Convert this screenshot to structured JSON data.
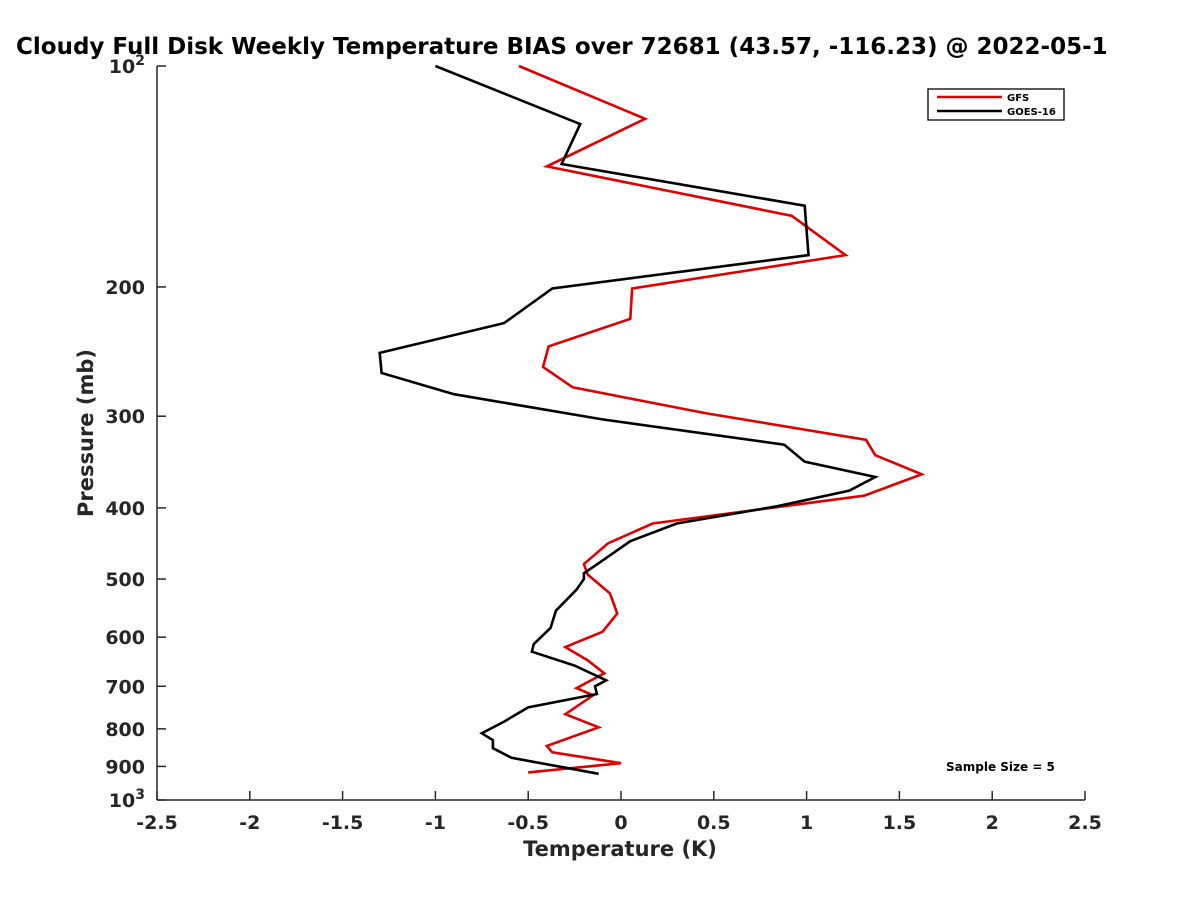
{
  "chart_data": {
    "type": "line",
    "title": "Cloudy Full Disk Weekly Temperature BIAS over 72681 (43.57, -116.23) @ 2022-05-1",
    "xlabel": "Temperature (K)",
    "ylabel": "Pressure (mb)",
    "xlim": [
      -2.5,
      2.5
    ],
    "ylim": [
      100,
      1000
    ],
    "y_scale": "log",
    "y_reversed": true,
    "x_ticks": [
      "-2.5",
      "-2",
      "-1.5",
      "-1",
      "-0.5",
      "0",
      "0.5",
      "1",
      "1.5",
      "2",
      "2.5"
    ],
    "y_ticks": [
      {
        "value": 100,
        "base": "10",
        "exp": "2"
      },
      {
        "value": 200,
        "label": "200"
      },
      {
        "value": 300,
        "label": "300"
      },
      {
        "value": 400,
        "label": "400"
      },
      {
        "value": 500,
        "label": "500"
      },
      {
        "value": 600,
        "label": "600"
      },
      {
        "value": 700,
        "label": "700"
      },
      {
        "value": 800,
        "label": "800"
      },
      {
        "value": 900,
        "label": "900"
      },
      {
        "value": 1000,
        "base": "10",
        "exp": "3"
      }
    ],
    "grid": false,
    "legend_position": "top-right",
    "annotation": "Sample Size = 5",
    "series": [
      {
        "name": "GFS",
        "color": "#e00000",
        "points": [
          [
            -0.55,
            100
          ],
          [
            0.13,
            118
          ],
          [
            -0.4,
            137
          ],
          [
            0.92,
            160
          ],
          [
            1.21,
            181
          ],
          [
            0.06,
            201
          ],
          [
            0.05,
            221
          ],
          [
            -0.39,
            241
          ],
          [
            -0.42,
            257
          ],
          [
            -0.26,
            274
          ],
          [
            0.45,
            297
          ],
          [
            1.32,
            323
          ],
          [
            1.37,
            339
          ],
          [
            1.62,
            360
          ],
          [
            1.31,
            385
          ],
          [
            0.17,
            420
          ],
          [
            -0.07,
            447
          ],
          [
            -0.2,
            477
          ],
          [
            -0.18,
            493
          ],
          [
            -0.06,
            523
          ],
          [
            -0.02,
            557
          ],
          [
            -0.1,
            590
          ],
          [
            -0.3,
            619
          ],
          [
            -0.18,
            645
          ],
          [
            -0.09,
            672
          ],
          [
            -0.24,
            704
          ],
          [
            -0.15,
            720
          ],
          [
            -0.3,
            764
          ],
          [
            -0.12,
            796
          ],
          [
            -0.4,
            844
          ],
          [
            -0.37,
            861
          ],
          [
            0.0,
            891
          ],
          [
            -0.5,
            917
          ]
        ]
      },
      {
        "name": "GOES-16",
        "color": "#000000",
        "points": [
          [
            -1.0,
            100
          ],
          [
            -0.22,
            120
          ],
          [
            -0.32,
            136
          ],
          [
            0.99,
            155
          ],
          [
            1.01,
            181
          ],
          [
            -0.37,
            201
          ],
          [
            -0.63,
            224
          ],
          [
            -1.3,
            246
          ],
          [
            -1.29,
            262
          ],
          [
            -0.9,
            280
          ],
          [
            -0.1,
            303
          ],
          [
            0.88,
            328
          ],
          [
            0.99,
            346
          ],
          [
            1.37,
            363
          ],
          [
            1.23,
            379
          ],
          [
            0.84,
            398
          ],
          [
            0.3,
            420
          ],
          [
            0.05,
            444
          ],
          [
            -0.09,
            470
          ],
          [
            -0.2,
            491
          ],
          [
            -0.2,
            500
          ],
          [
            -0.24,
            517
          ],
          [
            -0.35,
            552
          ],
          [
            -0.38,
            583
          ],
          [
            -0.47,
            613
          ],
          [
            -0.48,
            628
          ],
          [
            -0.25,
            656
          ],
          [
            -0.08,
            687
          ],
          [
            -0.14,
            700
          ],
          [
            -0.13,
            717
          ],
          [
            -0.5,
            748
          ],
          [
            -0.63,
            782
          ],
          [
            -0.75,
            811
          ],
          [
            -0.69,
            829
          ],
          [
            -0.69,
            850
          ],
          [
            -0.59,
            876
          ],
          [
            -0.12,
            921
          ]
        ]
      }
    ]
  }
}
